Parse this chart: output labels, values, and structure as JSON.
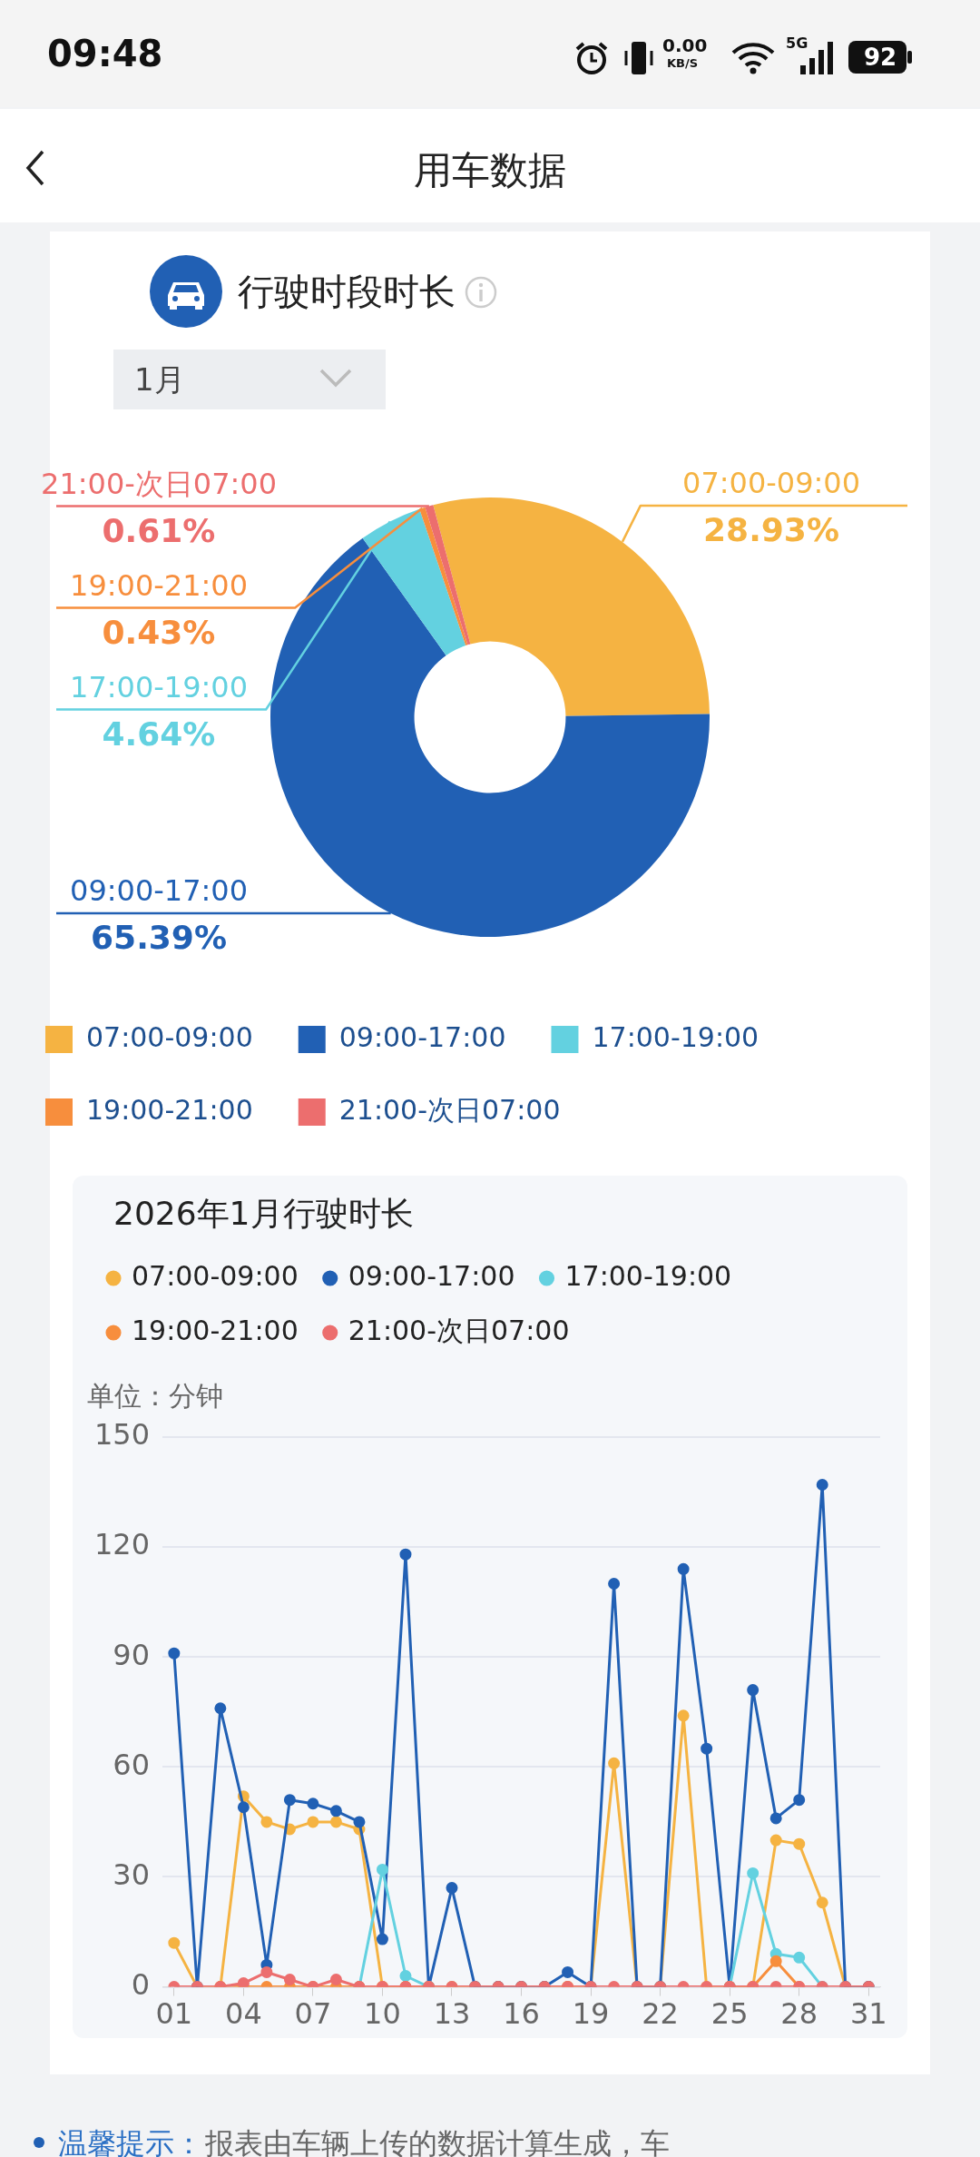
{
  "chart_data": [
    {
      "type": "donut",
      "title": "行驶时段时长",
      "categories": [
        "07:00-09:00",
        "09:00-17:00",
        "17:00-19:00",
        "19:00-21:00",
        "21:00-次日07:00"
      ],
      "values": [
        28.93,
        65.39,
        4.64,
        0.43,
        0.61
      ],
      "colors": [
        "#f5b342",
        "#2160b4",
        "#63d1e0",
        "#f78e3d",
        "#ec6e6e"
      ],
      "value_labels": [
        "28.93%",
        "65.39%",
        "4.64%",
        "0.43%",
        "0.61%"
      ],
      "legend": "bottom",
      "annotations": [
        "09:48",
        "0.00",
        "KB/S",
        "5G",
        "92",
        "用车数据",
        "1月"
      ]
    },
    {
      "type": "line",
      "title": "2026年1月行驶时长",
      "ylabel": "单位：分钟",
      "categories": [
        "01",
        null,
        null,
        "04",
        null,
        null,
        "07",
        null,
        null,
        "10",
        null,
        null,
        "13",
        null,
        null,
        "16",
        null,
        null,
        "19",
        null,
        null,
        "22",
        null,
        null,
        "25",
        null,
        null,
        "28",
        null,
        null,
        "31"
      ],
      "series": [
        {
          "name": "07:00-09:00",
          "color": "#f5b342",
          "values": [
            12,
            0,
            0,
            52,
            45,
            43,
            45,
            45,
            43,
            0,
            0,
            0,
            0,
            0,
            0,
            0,
            0,
            0,
            0,
            61,
            0,
            0,
            74,
            0,
            0,
            0,
            40,
            39,
            23,
            0,
            0
          ]
        },
        {
          "name": "09:00-17:00",
          "color": "#2160b4",
          "values": [
            91,
            0,
            76,
            49,
            6,
            51,
            50,
            48,
            45,
            13,
            118,
            0,
            27,
            0,
            0,
            0,
            0,
            4,
            0,
            110,
            0,
            0,
            114,
            65,
            0,
            81,
            46,
            51,
            137,
            0,
            0
          ]
        },
        {
          "name": "17:00-19:00",
          "color": "#63d1e0",
          "values": [
            null,
            null,
            null,
            null,
            null,
            null,
            null,
            null,
            0,
            32,
            3,
            0,
            null,
            null,
            null,
            null,
            null,
            null,
            null,
            null,
            null,
            null,
            null,
            null,
            0,
            31,
            9,
            8,
            0,
            null,
            null
          ]
        },
        {
          "name": "19:00-21:00",
          "color": "#f78e3d",
          "values": [
            null,
            null,
            0,
            0,
            0,
            0,
            0,
            0,
            0,
            0,
            0,
            0,
            null,
            null,
            null,
            null,
            null,
            0,
            null,
            null,
            null,
            null,
            null,
            null,
            0,
            0,
            7,
            0,
            null,
            null,
            null
          ]
        },
        {
          "name": "21:00-次日07:00",
          "color": "#ec6e6e",
          "values": [
            0,
            0,
            0,
            1,
            4,
            2,
            0,
            2,
            0,
            0,
            0,
            0,
            0,
            0,
            0,
            0,
            0,
            0,
            0,
            0,
            0,
            0,
            0,
            0,
            0,
            0,
            0,
            0,
            0,
            0,
            0
          ]
        }
      ],
      "ylim": [
        0,
        150
      ],
      "yticks": [
        0,
        30,
        60,
        90,
        120,
        150
      ],
      "grid": "y",
      "legend": "top left",
      "marker": "circle",
      "annotations": [
        "温馨提示：",
        "报表由车辆上传的数据计算生成，车"
      ]
    }
  ]
}
